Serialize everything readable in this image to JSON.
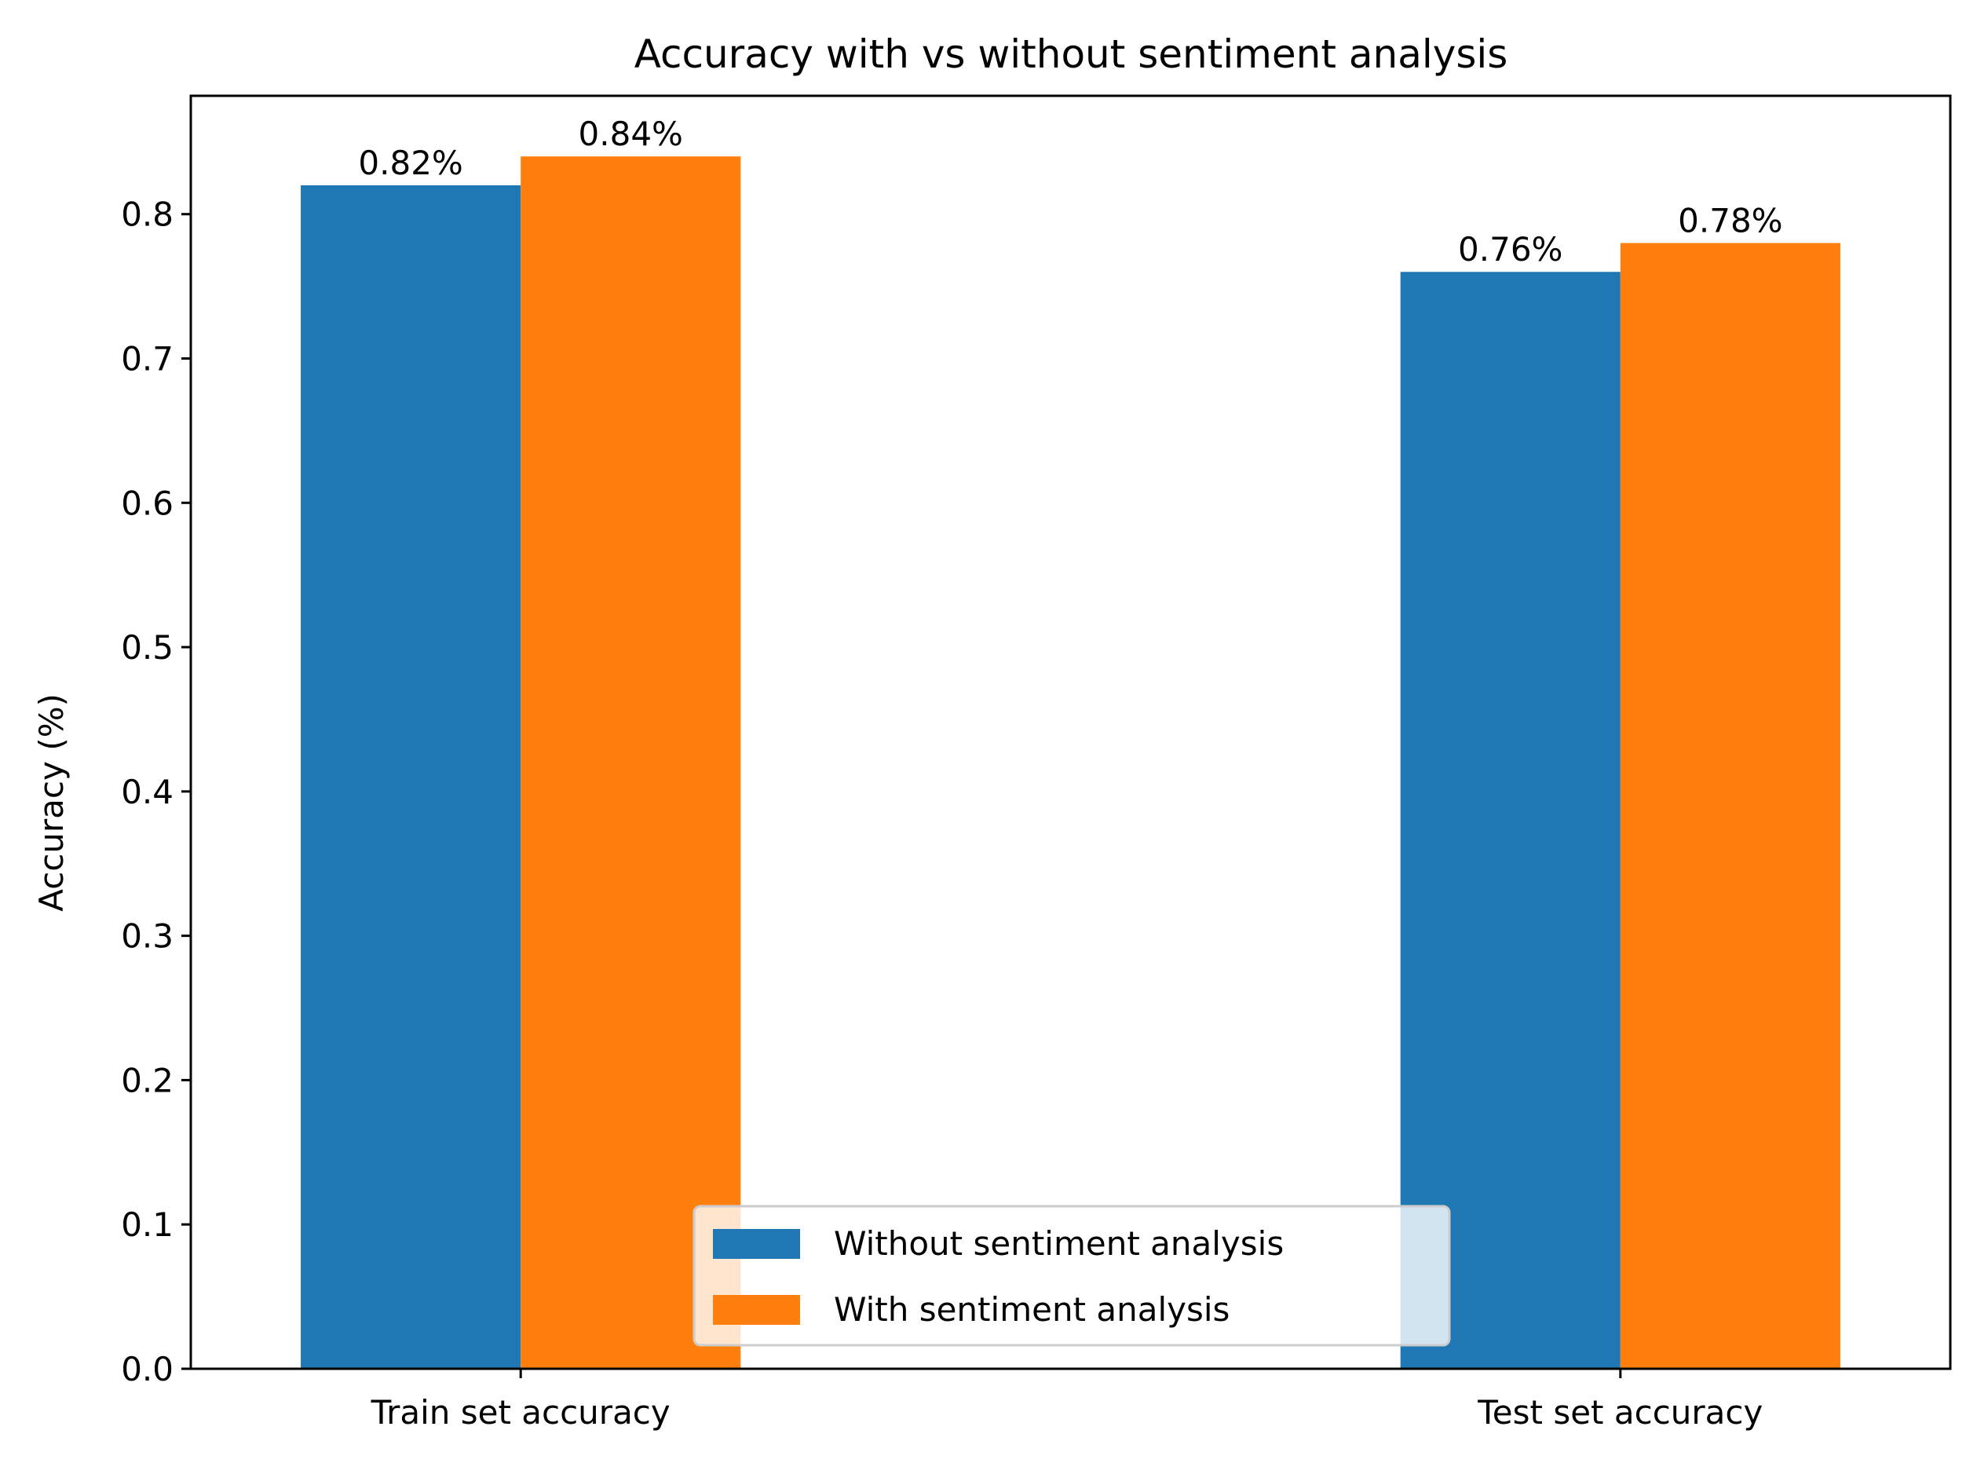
{
  "chart_data": {
    "type": "bar",
    "title": "Accuracy with vs without sentiment analysis",
    "xlabel": "",
    "ylabel": "Accuracy (%)",
    "categories": [
      "Train set accuracy",
      "Test set accuracy"
    ],
    "series": [
      {
        "name": "Without sentiment analysis",
        "values": [
          0.82,
          0.76
        ],
        "labels": [
          "0.82%",
          "0.76%"
        ],
        "color": "#1f77b4"
      },
      {
        "name": "With sentiment analysis",
        "values": [
          0.84,
          0.78
        ],
        "labels": [
          "0.84%",
          "0.78%"
        ],
        "color": "#ff7f0e"
      }
    ],
    "ylim": [
      0,
      0.882
    ],
    "yticks": [
      "0.0",
      "0.1",
      "0.2",
      "0.3",
      "0.4",
      "0.5",
      "0.6",
      "0.7",
      "0.8"
    ],
    "grid": false,
    "legend_position": "lower center"
  }
}
